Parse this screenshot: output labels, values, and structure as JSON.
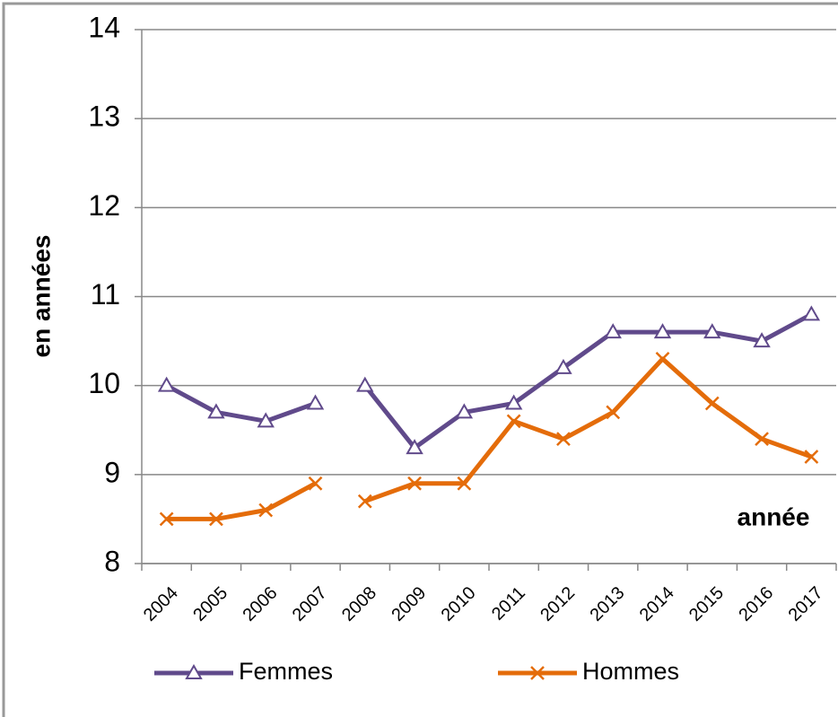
{
  "chart_data": {
    "type": "line",
    "y_label": "en années",
    "x_label": "année",
    "categories": [
      "2004",
      "2005",
      "2006",
      "2007",
      "2008",
      "2009",
      "2010",
      "2011",
      "2012",
      "2013",
      "2014",
      "2015",
      "2016",
      "2017"
    ],
    "series": [
      {
        "name": "Femmes",
        "color": "#604a8b",
        "marker": "triangle",
        "values": [
          10.0,
          9.7,
          9.6,
          9.8,
          10.0,
          9.3,
          9.7,
          9.8,
          10.2,
          10.6,
          10.6,
          10.6,
          10.5,
          10.8
        ]
      },
      {
        "name": "Hommes",
        "color": "#e46c0a",
        "marker": "x",
        "values": [
          8.5,
          8.5,
          8.6,
          8.9,
          8.7,
          8.9,
          8.9,
          9.6,
          9.4,
          9.7,
          10.3,
          9.8,
          9.4,
          9.2
        ]
      }
    ],
    "break_after_index": 3,
    "ylim": [
      8,
      14
    ],
    "yticks": [
      8,
      9,
      10,
      11,
      12,
      13,
      14
    ],
    "grid": true,
    "legend": "bottom"
  }
}
